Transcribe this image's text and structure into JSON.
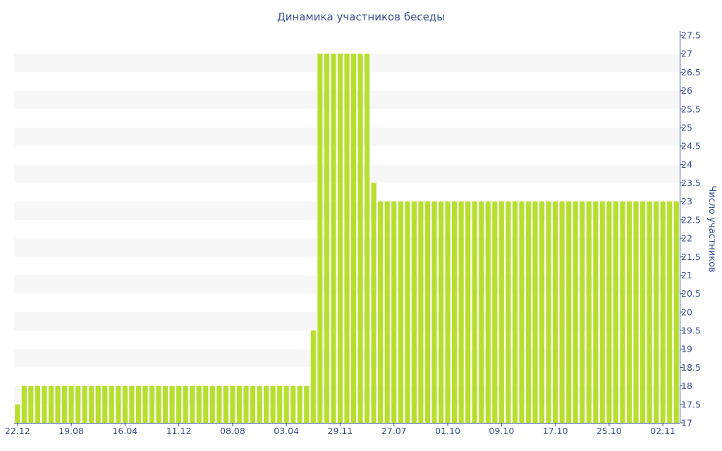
{
  "chart_data": {
    "type": "bar",
    "title": "Динамика участников беседы",
    "xlabel": "",
    "ylabel": "Число участников",
    "ylim": [
      17,
      27.5
    ],
    "y_ticks": [
      "17",
      "17.5",
      "18",
      "18.5",
      "19",
      "19.5",
      "20",
      "20.5",
      "21",
      "21.5",
      "22",
      "22.5",
      "23",
      "23.5",
      "24",
      "24.5",
      "25",
      "25.5",
      "26",
      "26.5",
      "27",
      "27.5"
    ],
    "y_axis_position": "right",
    "grid": "alternating horizontal bands",
    "legend": "none",
    "bar_color": "#b7df2e",
    "band_color": "#f7f7f7",
    "text_color": "#3b4f8f",
    "x_tick_labels": [
      "22.12",
      "19.08",
      "16.04",
      "11.12",
      "08.08",
      "03.04",
      "29.11",
      "27.07",
      "01.10",
      "09.10",
      "17.10",
      "25.10",
      "02.11"
    ],
    "values": [
      17.5,
      18,
      18,
      18,
      18,
      18,
      18,
      18,
      18,
      18,
      18,
      18,
      18,
      18,
      18,
      18,
      18,
      18,
      18,
      18,
      18,
      18,
      18,
      18,
      18,
      18,
      18,
      18,
      18,
      18,
      18,
      18,
      18,
      18,
      18,
      18,
      18,
      18,
      18,
      18,
      18,
      18,
      18,
      18,
      19.5,
      27,
      27,
      27,
      27,
      27,
      27,
      27,
      27,
      23.5,
      23,
      23,
      23,
      23,
      23,
      23,
      23,
      23,
      23,
      23,
      23,
      23,
      23,
      23,
      23,
      23,
      23,
      23,
      23,
      23,
      23,
      23,
      23,
      23,
      23,
      23,
      23,
      23,
      23,
      23,
      23,
      23,
      23,
      23,
      23,
      23,
      23,
      23,
      23,
      23,
      23,
      23,
      23,
      23,
      23
    ]
  }
}
